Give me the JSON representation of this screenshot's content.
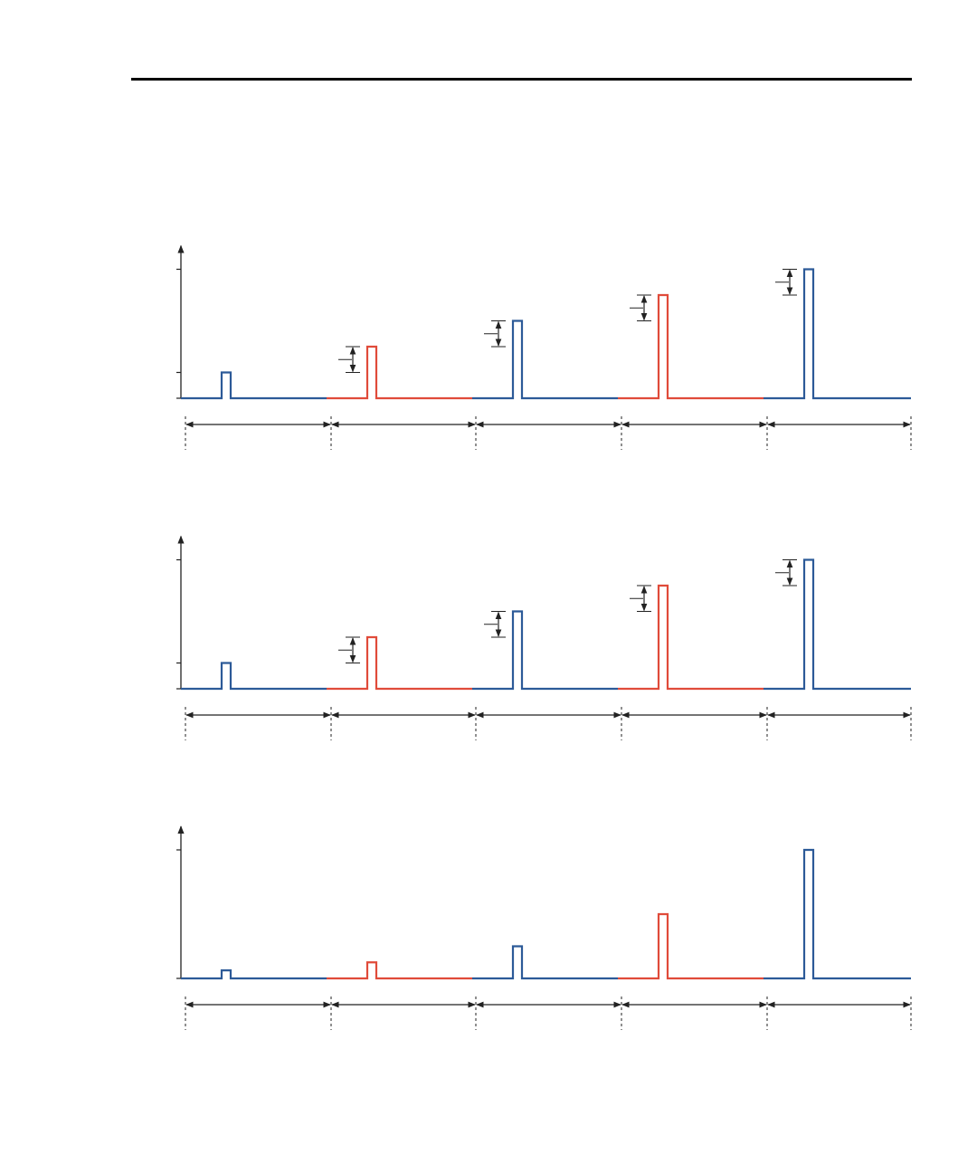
{
  "colors": {
    "blue": "#2c5a98",
    "red": "#e04b3a",
    "axis": "#222222",
    "rule": "#000000"
  },
  "chart_data": [
    {
      "type": "line",
      "pulse_heights": [
        1,
        2,
        3,
        4,
        5
      ],
      "pulse_colors": [
        "blue",
        "red",
        "blue",
        "red",
        "blue"
      ],
      "step_markers": [
        false,
        true,
        true,
        true,
        true
      ],
      "y_ticks": 2,
      "intervals": 5
    },
    {
      "type": "line",
      "pulse_heights": [
        1,
        2,
        3,
        4,
        5
      ],
      "pulse_colors": [
        "blue",
        "red",
        "blue",
        "red",
        "blue"
      ],
      "step_markers": [
        false,
        true,
        true,
        true,
        true
      ],
      "y_ticks": 2,
      "intervals": 5
    },
    {
      "type": "line",
      "pulse_heights": [
        0.25,
        0.5,
        1,
        2,
        4
      ],
      "pulse_colors": [
        "blue",
        "red",
        "blue",
        "red",
        "blue"
      ],
      "step_markers": [
        false,
        false,
        false,
        false,
        false
      ],
      "y_ticks": 1,
      "intervals": 5
    }
  ]
}
